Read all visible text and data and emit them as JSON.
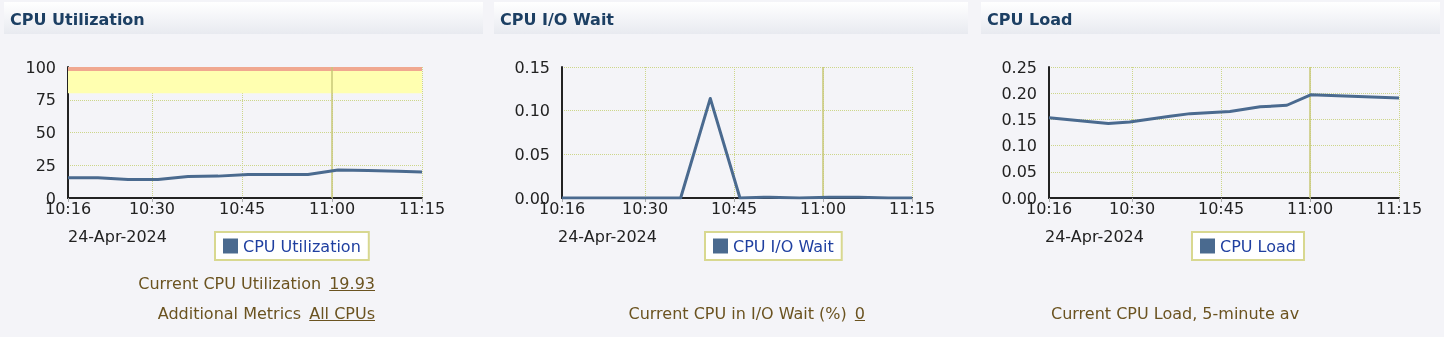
{
  "chart_data": [
    {
      "type": "line",
      "title": "CPU Utilization",
      "x": [
        10.2667,
        10.35,
        10.4333,
        10.5167,
        10.6,
        10.6833,
        10.7667,
        10.85,
        10.9333,
        11.0167,
        11.1,
        11.1833,
        11.25
      ],
      "series": [
        {
          "name": "CPU Utilization",
          "color": "#4a6a8f",
          "values": [
            15.5,
            15.5,
            14.2,
            14.2,
            16.5,
            16.7,
            18,
            18,
            18,
            21.3,
            21,
            20.5,
            19.93
          ]
        }
      ],
      "xlim": [
        10.2667,
        11.25
      ],
      "xticks": [
        {
          "value": 10.2667,
          "label": "10:16"
        },
        {
          "value": 10.5,
          "label": "10:30"
        },
        {
          "value": 10.75,
          "label": "10:45"
        },
        {
          "value": 11,
          "label": "11:00"
        },
        {
          "value": 11.25,
          "label": "11:15"
        }
      ],
      "ylim": [
        0,
        100
      ],
      "yticks": [
        0,
        25,
        50,
        75,
        100
      ],
      "grid": true,
      "legend": "bottom",
      "marker": "none",
      "bands": [
        {
          "axis": "y",
          "from": 80,
          "to": 97,
          "color": "#ffffb0"
        },
        {
          "axis": "y",
          "from": 97,
          "to": 100,
          "color": "#f0a890"
        }
      ],
      "ref_lines": [
        {
          "axis": "x",
          "value": 11,
          "color": "#c8c878"
        }
      ],
      "annotations": [
        "24-Apr-2024",
        "Current CPU Utilization",
        "19.93",
        "Additional Metrics",
        "All CPUs"
      ]
    },
    {
      "type": "line",
      "title": "CPU I/O Wait",
      "x": [
        10.2667,
        10.35,
        10.4333,
        10.5167,
        10.6,
        10.6833,
        10.7667,
        10.85,
        10.9333,
        11.0167,
        11.1,
        11.1833,
        11.25
      ],
      "series": [
        {
          "name": "CPU I/O Wait",
          "color": "#4a6a8f",
          "values": [
            0,
            0,
            0,
            0,
            0,
            0.114,
            0,
            0.001,
            0,
            0.001,
            0.001,
            0,
            0
          ]
        }
      ],
      "xlim": [
        10.2667,
        11.25
      ],
      "xticks": [
        {
          "value": 10.2667,
          "label": "10:16"
        },
        {
          "value": 10.5,
          "label": "10:30"
        },
        {
          "value": 10.75,
          "label": "10:45"
        },
        {
          "value": 11,
          "label": "11:00"
        },
        {
          "value": 11.25,
          "label": "11:15"
        }
      ],
      "ylim": [
        0,
        0.15
      ],
      "yticks": [
        {
          "value": 0,
          "label": "0.00"
        },
        {
          "value": 0.05,
          "label": "0.05"
        },
        {
          "value": 0.1,
          "label": "0.10"
        },
        {
          "value": 0.15,
          "label": "0.15"
        }
      ],
      "grid": true,
      "legend": "bottom",
      "marker": "none",
      "ref_lines": [
        {
          "axis": "x",
          "value": 11,
          "color": "#c8c878"
        }
      ],
      "annotations": [
        "24-Apr-2024",
        "Current CPU in I/O Wait (%)",
        "0"
      ]
    },
    {
      "type": "line",
      "title": "CPU Load",
      "x": [
        10.2667,
        10.4333,
        10.4933,
        10.6067,
        10.6633,
        10.775,
        10.86,
        10.935,
        11.0017,
        11.25
      ],
      "series": [
        {
          "name": "CPU Load",
          "color": "#4a6a8f",
          "values": [
            0.153,
            0.142,
            0.145,
            0.156,
            0.161,
            0.165,
            0.174,
            0.177,
            0.197,
            0.191
          ]
        }
      ],
      "xlim": [
        10.2667,
        11.25
      ],
      "xticks": [
        {
          "value": 10.2667,
          "label": "10:16"
        },
        {
          "value": 10.5,
          "label": "10:30"
        },
        {
          "value": 10.75,
          "label": "10:45"
        },
        {
          "value": 11,
          "label": "11:00"
        },
        {
          "value": 11.25,
          "label": "11:15"
        }
      ],
      "ylim": [
        0,
        0.25
      ],
      "yticks": [
        {
          "value": 0,
          "label": "0.00"
        },
        {
          "value": 0.05,
          "label": "0.05"
        },
        {
          "value": 0.1,
          "label": "0.10"
        },
        {
          "value": 0.15,
          "label": "0.15"
        },
        {
          "value": 0.2,
          "label": "0.20"
        },
        {
          "value": 0.25,
          "label": "0.25"
        }
      ],
      "grid": true,
      "legend": "bottom",
      "marker": "none",
      "ref_lines": [
        {
          "axis": "x",
          "value": 11,
          "color": "#c8c878"
        }
      ],
      "annotations": [
        "24-Apr-2024",
        "Current CPU Load, 5-minute av"
      ]
    }
  ]
}
